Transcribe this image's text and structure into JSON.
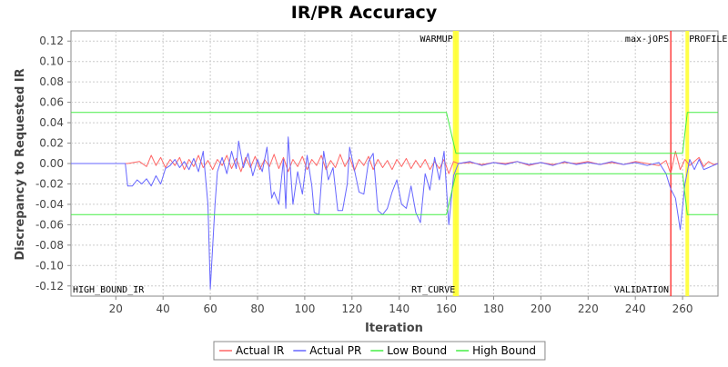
{
  "chart_data": {
    "type": "line",
    "title": "IR/PR Accuracy",
    "xlabel": "Iteration",
    "ylabel": "Discrepancy to Requested IR",
    "xlim": [
      1,
      275
    ],
    "ylim": [
      -0.13,
      0.13
    ],
    "xticks": [
      20,
      40,
      60,
      80,
      100,
      120,
      140,
      160,
      180,
      200,
      220,
      240,
      260
    ],
    "yticks": [
      -0.12,
      -0.1,
      -0.08,
      -0.06,
      -0.04,
      -0.02,
      0.0,
      0.02,
      0.04,
      0.06,
      0.08,
      0.1,
      0.12
    ],
    "grid": true,
    "legend_position": "bottom",
    "legend": [
      {
        "label": "Actual IR",
        "color": "#ff6666"
      },
      {
        "label": "Actual PR",
        "color": "#6666ff"
      },
      {
        "label": "Low Bound",
        "color": "#44ee44"
      },
      {
        "label": "High Bound",
        "color": "#44ee44"
      }
    ],
    "markers": [
      {
        "label": "WARMUP",
        "x": 163.5,
        "color": "#ffff33",
        "label_pos": "top"
      },
      {
        "label": "RT_CURVE",
        "x": 164.5,
        "color": "#ffff33",
        "label_pos": "bottom"
      },
      {
        "label": "max-jOPS",
        "x": 255,
        "color": "#ff2222",
        "label_pos": "top"
      },
      {
        "label": "VALIDATION",
        "x": 255,
        "color": "#ff2222",
        "label_pos": "bottom"
      },
      {
        "label": "PROFILE",
        "x": 262,
        "color": "#ffff33",
        "label_pos": "top"
      },
      {
        "label": "HIGH_BOUND_IR",
        "x": 1,
        "color": "none",
        "label_pos": "bottom"
      }
    ],
    "series": [
      {
        "name": "Actual IR",
        "color": "#ff6666",
        "points": [
          [
            1,
            0
          ],
          [
            20,
            0
          ],
          [
            25,
            0
          ],
          [
            30,
            0.002
          ],
          [
            33,
            -0.003
          ],
          [
            35,
            0.008
          ],
          [
            37,
            -0.002
          ],
          [
            39,
            0.006
          ],
          [
            41,
            -0.004
          ],
          [
            43,
            0.004
          ],
          [
            45,
            -0.002
          ],
          [
            47,
            0.006
          ],
          [
            49,
            -0.006
          ],
          [
            51,
            0.004
          ],
          [
            53,
            -0.003
          ],
          [
            55,
            0.008
          ],
          [
            57,
            -0.004
          ],
          [
            59,
            0.003
          ],
          [
            61,
            -0.006
          ],
          [
            63,
            0.004
          ],
          [
            65,
            -0.002
          ],
          [
            67,
            0.008
          ],
          [
            69,
            -0.005
          ],
          [
            71,
            0.005
          ],
          [
            73,
            -0.008
          ],
          [
            75,
            0.006
          ],
          [
            77,
            -0.004
          ],
          [
            79,
            0.007
          ],
          [
            81,
            -0.006
          ],
          [
            83,
            0.004
          ],
          [
            85,
            -0.003
          ],
          [
            87,
            0.009
          ],
          [
            89,
            -0.005
          ],
          [
            91,
            0.006
          ],
          [
            93,
            -0.008
          ],
          [
            95,
            0.004
          ],
          [
            97,
            -0.003
          ],
          [
            99,
            0.007
          ],
          [
            101,
            -0.006
          ],
          [
            103,
            0.004
          ],
          [
            105,
            -0.002
          ],
          [
            107,
            0.008
          ],
          [
            109,
            -0.006
          ],
          [
            111,
            0.003
          ],
          [
            113,
            -0.004
          ],
          [
            115,
            0.009
          ],
          [
            117,
            -0.003
          ],
          [
            119,
            0.006
          ],
          [
            121,
            -0.007
          ],
          [
            123,
            0.004
          ],
          [
            125,
            -0.002
          ],
          [
            127,
            0.007
          ],
          [
            129,
            -0.006
          ],
          [
            131,
            0.004
          ],
          [
            133,
            -0.004
          ],
          [
            135,
            0.003
          ],
          [
            137,
            -0.006
          ],
          [
            139,
            0.004
          ],
          [
            141,
            -0.003
          ],
          [
            143,
            0.005
          ],
          [
            145,
            -0.005
          ],
          [
            147,
            0.003
          ],
          [
            149,
            -0.004
          ],
          [
            151,
            0.004
          ],
          [
            153,
            -0.006
          ],
          [
            155,
            0.002
          ],
          [
            157,
            -0.005
          ],
          [
            159,
            0.004
          ],
          [
            161,
            -0.01
          ],
          [
            163,
            0.002
          ],
          [
            165,
            0
          ],
          [
            170,
            0.001
          ],
          [
            175,
            -0.001
          ],
          [
            180,
            0.001
          ],
          [
            185,
            0
          ],
          [
            190,
            0.002
          ],
          [
            195,
            -0.002
          ],
          [
            200,
            0.001
          ],
          [
            205,
            -0.001
          ],
          [
            210,
            0.001
          ],
          [
            215,
            0
          ],
          [
            220,
            0.002
          ],
          [
            225,
            -0.001
          ],
          [
            230,
            0.001
          ],
          [
            235,
            -0.001
          ],
          [
            240,
            0.002
          ],
          [
            245,
            0
          ],
          [
            250,
            -0.002
          ],
          [
            253,
            0.003
          ],
          [
            255,
            -0.01
          ],
          [
            257,
            0.012
          ],
          [
            259,
            -0.006
          ],
          [
            261,
            0.004
          ],
          [
            263,
            -0.002
          ],
          [
            265,
            0.002
          ],
          [
            267,
            0.006
          ],
          [
            269,
            -0.003
          ],
          [
            271,
            0.002
          ],
          [
            273,
            -0.001
          ],
          [
            275,
            0
          ]
        ]
      },
      {
        "name": "Actual PR",
        "color": "#6666ff",
        "points": [
          [
            1,
            0
          ],
          [
            24,
            0
          ],
          [
            25,
            -0.022
          ],
          [
            27,
            -0.022
          ],
          [
            29,
            -0.016
          ],
          [
            31,
            -0.02
          ],
          [
            33,
            -0.015
          ],
          [
            35,
            -0.022
          ],
          [
            37,
            -0.012
          ],
          [
            39,
            -0.02
          ],
          [
            41,
            -0.005
          ],
          [
            43,
            -0.002
          ],
          [
            45,
            0.004
          ],
          [
            47,
            -0.004
          ],
          [
            49,
            0.002
          ],
          [
            51,
            -0.006
          ],
          [
            53,
            0.005
          ],
          [
            55,
            -0.008
          ],
          [
            57,
            0.012
          ],
          [
            59,
            -0.04
          ],
          [
            60,
            -0.123
          ],
          [
            62,
            -0.04
          ],
          [
            63,
            -0.008
          ],
          [
            65,
            0.006
          ],
          [
            67,
            -0.01
          ],
          [
            69,
            0.012
          ],
          [
            71,
            -0.005
          ],
          [
            72,
            0.022
          ],
          [
            74,
            -0.004
          ],
          [
            76,
            0.01
          ],
          [
            78,
            -0.012
          ],
          [
            80,
            0.004
          ],
          [
            82,
            -0.008
          ],
          [
            84,
            0.016
          ],
          [
            86,
            -0.034
          ],
          [
            87,
            -0.028
          ],
          [
            89,
            -0.04
          ],
          [
            91,
            0.004
          ],
          [
            92,
            -0.044
          ],
          [
            93,
            0.026
          ],
          [
            95,
            -0.04
          ],
          [
            97,
            -0.008
          ],
          [
            99,
            -0.03
          ],
          [
            101,
            0.008
          ],
          [
            103,
            -0.022
          ],
          [
            104,
            -0.048
          ],
          [
            106,
            -0.05
          ],
          [
            108,
            0.012
          ],
          [
            110,
            -0.016
          ],
          [
            112,
            -0.004
          ],
          [
            114,
            -0.046
          ],
          [
            116,
            -0.046
          ],
          [
            118,
            -0.02
          ],
          [
            119,
            0.016
          ],
          [
            121,
            -0.006
          ],
          [
            123,
            -0.028
          ],
          [
            125,
            -0.03
          ],
          [
            127,
            0.002
          ],
          [
            129,
            0.01
          ],
          [
            131,
            -0.046
          ],
          [
            133,
            -0.05
          ],
          [
            135,
            -0.044
          ],
          [
            137,
            -0.028
          ],
          [
            139,
            -0.016
          ],
          [
            141,
            -0.04
          ],
          [
            143,
            -0.044
          ],
          [
            145,
            -0.022
          ],
          [
            147,
            -0.048
          ],
          [
            149,
            -0.058
          ],
          [
            151,
            -0.01
          ],
          [
            153,
            -0.026
          ],
          [
            155,
            0.006
          ],
          [
            157,
            -0.016
          ],
          [
            159,
            0.012
          ],
          [
            161,
            -0.06
          ],
          [
            163,
            -0.012
          ],
          [
            165,
            0
          ],
          [
            170,
            0.002
          ],
          [
            175,
            -0.002
          ],
          [
            180,
            0.001
          ],
          [
            185,
            -0.001
          ],
          [
            190,
            0.002
          ],
          [
            195,
            -0.001
          ],
          [
            200,
            0.001
          ],
          [
            205,
            -0.002
          ],
          [
            210,
            0.002
          ],
          [
            215,
            -0.001
          ],
          [
            220,
            0.001
          ],
          [
            225,
            -0.001
          ],
          [
            230,
            0.002
          ],
          [
            235,
            -0.001
          ],
          [
            240,
            0.001
          ],
          [
            245,
            -0.002
          ],
          [
            250,
            0.001
          ],
          [
            253,
            -0.01
          ],
          [
            255,
            -0.025
          ],
          [
            257,
            -0.034
          ],
          [
            259,
            -0.065
          ],
          [
            261,
            -0.02
          ],
          [
            263,
            0.004
          ],
          [
            265,
            -0.006
          ],
          [
            267,
            0.004
          ],
          [
            269,
            -0.006
          ],
          [
            271,
            -0.004
          ],
          [
            273,
            -0.002
          ],
          [
            275,
            0
          ]
        ]
      },
      {
        "name": "Low Bound",
        "color": "#44ee44",
        "points": [
          [
            1,
            -0.05
          ],
          [
            160,
            -0.05
          ],
          [
            164,
            -0.01
          ],
          [
            260,
            -0.01
          ],
          [
            262,
            -0.05
          ],
          [
            275,
            -0.05
          ]
        ]
      },
      {
        "name": "High Bound",
        "color": "#44ee44",
        "points": [
          [
            1,
            0.05
          ],
          [
            160,
            0.05
          ],
          [
            164,
            0.01
          ],
          [
            260,
            0.01
          ],
          [
            262,
            0.05
          ],
          [
            275,
            0.05
          ]
        ]
      }
    ]
  }
}
